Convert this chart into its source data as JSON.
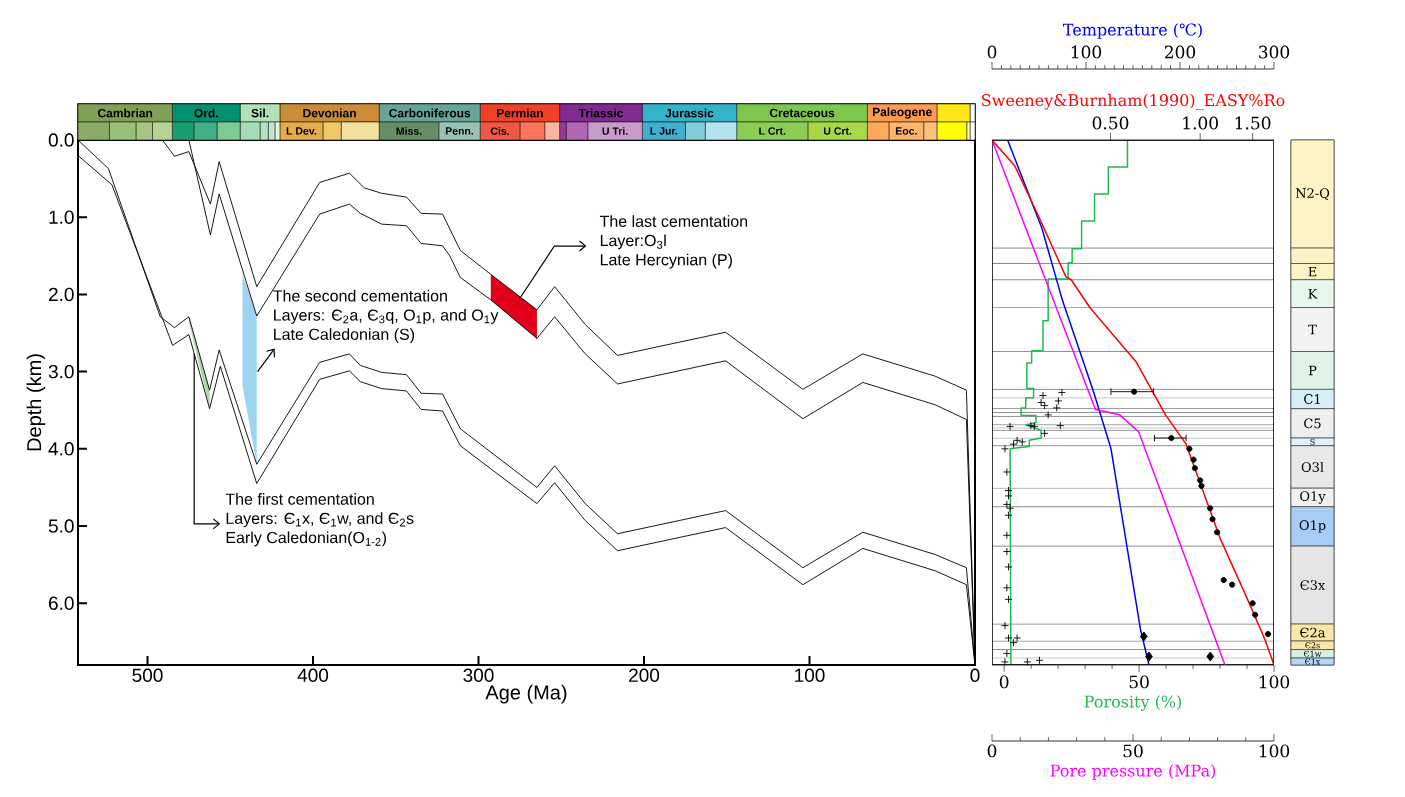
{
  "chart_data": [
    {
      "type": "line",
      "xlabel": "Age (Ma)",
      "ylabel": "Depth (km)",
      "xlim": [
        542,
        0
      ],
      "ylim": [
        6.8,
        0
      ],
      "xticks": [
        500,
        400,
        300,
        200,
        100,
        0
      ],
      "yticks": [
        {
          "value": 0,
          "label": "0.0"
        },
        {
          "value": 1,
          "label": "1.0"
        },
        {
          "value": 2,
          "label": "2.0"
        },
        {
          "value": 3,
          "label": "3.0"
        },
        {
          "value": 4,
          "label": "4.0"
        },
        {
          "value": 5,
          "label": "5.0"
        },
        {
          "value": 6,
          "label": "6.0"
        }
      ],
      "series": [
        {
          "type": "area",
          "color": "#a8d8a8",
          "x": [
            475,
            462.5,
            462.5,
            475
          ],
          "values": [
            2.29,
            3.24,
            3.48,
            2.35
          ]
        },
        {
          "type": "area",
          "color": "#9fd4f0",
          "x": [
            442.6,
            434,
            434,
            442.6
          ],
          "values": [
            1.74,
            2.28,
            4.2,
            3.19
          ]
        },
        {
          "type": "area",
          "color": "#e3001b",
          "x": [
            292.6,
            264.7,
            264.7,
            292.6
          ],
          "values": [
            1.74,
            2.2,
            2.57,
            2.07
          ]
        },
        {
          "color": "#000000",
          "x": [
            491,
            483.7,
            475,
            462,
            456.7,
            434,
            396,
            378,
            369,
            358.5,
            343.5,
            334.7,
            321.7,
            311,
            292.6,
            264.7,
            254,
            235.5,
            216,
            150.7,
            104,
            67.8,
            24,
            5.2,
            0
          ],
          "values": [
            0,
            0.21,
            0.15,
            0.83,
            0.28,
            1.9,
            0.55,
            0.43,
            0.62,
            0.69,
            0.74,
            0.95,
            0.96,
            1.43,
            1.74,
            2.2,
            1.9,
            2.39,
            2.79,
            2.49,
            3.23,
            2.77,
            3.06,
            3.24,
            6.8
          ]
        },
        {
          "color": "#000000",
          "x": [
            475,
            462,
            456.7,
            434,
            396,
            378,
            371.4,
            358.5,
            343.5,
            334.7,
            321.7,
            317.4,
            311,
            292.6,
            264.7,
            254,
            235.5,
            216,
            150.7,
            104,
            67.8,
            24,
            5.2,
            0
          ],
          "values": [
            0,
            1.23,
            0.7,
            2.28,
            0.96,
            0.83,
            0.95,
            1.09,
            1.11,
            1.34,
            1.37,
            1.5,
            1.78,
            2.07,
            2.57,
            2.29,
            2.77,
            3.16,
            2.86,
            3.61,
            3.14,
            3.43,
            3.62,
            6.8
          ]
        },
        {
          "color": "#000000",
          "x": [
            542,
            523.6,
            492.3,
            483.7,
            475,
            462.5,
            456.7,
            434,
            396,
            378,
            371.4,
            358.5,
            343.5,
            334.7,
            321.7,
            311,
            264.7,
            254,
            235.5,
            216,
            150.7,
            104,
            67.8,
            24,
            5.2,
            0
          ],
          "values": [
            0,
            0.37,
            2.29,
            2.43,
            2.29,
            3.24,
            2.72,
            4.2,
            2.88,
            2.77,
            2.92,
            3.01,
            3.04,
            3.28,
            3.29,
            3.74,
            4.5,
            4.22,
            4.71,
            5.1,
            4.8,
            5.54,
            5.08,
            5.37,
            5.54,
            6.8
          ]
        },
        {
          "color": "#000000",
          "x": [
            542,
            521.5,
            484.8,
            475,
            462.5,
            456,
            434,
            396,
            378,
            371.4,
            358.5,
            343.5,
            334.7,
            321.7,
            311,
            264.7,
            254,
            235.5,
            216,
            150.7,
            104,
            67.8,
            24,
            5.2,
            0
          ],
          "values": [
            0.2,
            0.58,
            2.66,
            2.52,
            3.48,
            2.93,
            4.45,
            3.1,
            2.99,
            3.13,
            3.22,
            3.25,
            3.49,
            3.51,
            3.96,
            4.71,
            4.44,
            4.93,
            5.32,
            5.02,
            5.76,
            5.29,
            5.58,
            5.76,
            6.8
          ]
        }
      ],
      "annotations": [
        "The first cementation",
        {
          "text": "Layers:  Є$_{1}$x, Є$_{1}$w, and Є$_{2}$s",
          "x": 471.8,
          "y": 2.77
        },
        "Early Caledonian(O$_{1-2}$)",
        "The second cementation",
        "Layers: Є$_{2}$a, Є$_{3}$q, O$_{1}$p, and O$_{1}$y",
        {
          "text": "Late Caledonian (S)",
          "x": 433.5,
          "y": 3.0
        },
        "The last cementation",
        {
          "text": "Layer:O$_{3}$l",
          "x": 275.3,
          "y": 2.06
        },
        "Late Hercynian (P)"
      ]
    },
    {
      "type": "line",
      "xlabel": "Porosity (%)",
      "x2label": "Temperature (℃)",
      "xlim": [
        -4.5,
        100
      ],
      "xticks": [
        0,
        50,
        100
      ],
      "x2lim": [
        0,
        300
      ],
      "x2ticks": [
        0,
        100,
        200,
        300
      ],
      "ylim": [
        6.8,
        0
      ],
      "tick_labels": "x",
      "series": [
        {
          "color": "#1db954",
          "x": [
            45.7,
            45.7,
            38.6,
            38.6,
            33.5,
            33.5,
            28.7,
            28.7,
            25.2,
            25.2,
            23.7,
            23.7,
            16.3,
            16.3,
            14.4,
            14.4,
            10.2,
            10.2,
            8.4,
            8.4,
            10.9,
            10.9,
            8.0,
            8.0,
            6.3,
            6.3,
            11.8,
            11.8,
            8.0,
            13.7,
            13.7,
            9.3,
            9.3,
            2.2,
            2.5
          ],
          "values": [
            0,
            0.35,
            0.35,
            0.7,
            0.7,
            1.05,
            1.05,
            1.41,
            1.41,
            1.59,
            1.59,
            1.8,
            1.8,
            2.34,
            2.34,
            2.73,
            2.73,
            2.89,
            2.89,
            3.22,
            3.22,
            3.34,
            3.34,
            3.47,
            3.47,
            3.57,
            3.57,
            3.66,
            3.69,
            3.76,
            3.86,
            3.89,
            3.97,
            4.0,
            6.8
          ]
        },
        {
          "type": "scatter",
          "marker": "cross",
          "color": "#000000",
          "x": [
            14.4,
            21.4,
            13.7,
            15.0,
            20.1,
            19.5,
            16.3,
            20.8,
            15.0,
            2.2,
            9.9,
            11.2,
            4.8,
            6.7,
            3.5,
            0.3,
            1.0,
            1.6,
            1.6,
            1.0,
            2.2,
            1.6,
            1.0,
            1.0,
            1.6,
            1.0,
            1.6,
            0.3,
            1.6,
            4.8,
            3.5,
            1.0,
            8.6,
            13.1,
            0.3
          ],
          "values": [
            3.31,
            3.27,
            3.4,
            3.44,
            3.38,
            3.47,
            3.56,
            3.7,
            3.8,
            3.71,
            3.7,
            3.71,
            3.89,
            3.91,
            3.94,
            4.0,
            4.3,
            4.54,
            4.61,
            4.72,
            4.77,
            4.86,
            5.12,
            5.33,
            5.53,
            5.8,
            5.95,
            6.29,
            6.45,
            6.45,
            6.51,
            6.65,
            6.76,
            6.74,
            6.76
          ]
        },
        {
          "axis": "x2",
          "color": "#0000ff",
          "x": [
            16.6,
            53,
            75,
            108,
            126.6,
            157.8,
            167
          ],
          "values": [
            0,
            1.14,
            2.08,
            3.26,
            4.0,
            6.33,
            6.8
          ]
        },
        {
          "type": "scatter",
          "axis": "x2",
          "marker": "diamond",
          "color": "#000000",
          "x": [
            161.5,
            167
          ],
          "values": [
            6.43,
            6.69
          ]
        }
      ],
      "ref_lines": [
        {
          "axis": "y",
          "value": 1.4
        },
        {
          "axis": "y",
          "value": 1.6
        },
        {
          "axis": "y",
          "value": 1.81
        },
        {
          "axis": "y",
          "value": 2.17
        },
        {
          "axis": "y",
          "value": 2.74
        },
        {
          "axis": "y",
          "value": 3.23
        },
        {
          "axis": "y",
          "value": 3.34
        },
        {
          "axis": "y",
          "value": 3.48
        },
        {
          "axis": "y",
          "value": 3.53
        },
        {
          "axis": "y",
          "value": 3.58
        },
        {
          "axis": "y",
          "value": 3.69
        },
        {
          "axis": "y",
          "value": 3.73
        },
        {
          "axis": "y",
          "value": 3.76
        },
        {
          "axis": "y",
          "value": 3.86
        },
        {
          "axis": "y",
          "value": 3.96
        },
        {
          "axis": "y",
          "value": 4.51
        },
        {
          "axis": "y",
          "value": 4.75
        },
        {
          "axis": "y",
          "value": 5.26
        },
        {
          "axis": "y",
          "value": 6.27
        },
        {
          "axis": "y",
          "value": 6.49
        },
        {
          "axis": "y",
          "value": 6.6
        },
        {
          "axis": "y",
          "value": 6.71
        }
      ]
    },
    {
      "type": "line",
      "xlabel": "Sweeney&Burnham(1990)_EASY%Ro",
      "xlim": [
        0.2,
        1.77
      ],
      "xticks": [
        {
          "value": 0.5,
          "label": "0.50"
        },
        {
          "value": 1,
          "label": "1.00"
        },
        {
          "value": 1.5,
          "label": "1.50"
        }
      ],
      "ylim": [
        6.8,
        0
      ],
      "log": "x",
      "tick_labels": "x",
      "series": [
        {
          "color": "#ff0000",
          "x": [
            0.2,
            0.238,
            0.29,
            0.354,
            0.369,
            0.426,
            0.611,
            0.765,
            0.897,
            1.17,
            1.45,
            1.65,
            1.77
          ],
          "values": [
            0,
            0.33,
            1.03,
            1.77,
            1.81,
            2.17,
            2.88,
            3.56,
            3.94,
            5.17,
            5.97,
            6.47,
            6.8
          ]
        },
        {
          "type": "scatter",
          "marker": "circle",
          "color": "#000000",
          "x": [
            0.6,
            0.8,
            0.92,
            0.95,
            0.96,
            1.0,
            1.01,
            1.08,
            1.1,
            1.14,
            1.2,
            1.28,
            1.5,
            1.53,
            1.69
          ],
          "values": [
            3.26,
            3.86,
            4.0,
            4.14,
            4.25,
            4.41,
            4.48,
            4.77,
            4.91,
            5.08,
            5.7,
            5.76,
            6.0,
            6.15,
            6.4
          ],
          "xerrors": [
            [
              0.5,
              0.7
            ],
            [
              0.7,
              0.9
            ],
            null,
            null,
            null,
            null,
            null,
            null,
            null,
            null,
            null,
            null,
            null,
            null,
            null
          ]
        }
      ]
    },
    {
      "type": "line",
      "xlabel": "Pore pressure (MPa)",
      "xlim": [
        0,
        100
      ],
      "xticks": [
        0,
        50,
        100
      ],
      "ylim": [
        6.8,
        0
      ],
      "tick_labels": "x",
      "series": [
        {
          "color": "#ff00ff",
          "x": [
            0,
            19,
            36.7,
            45.3,
            52,
            82.6
          ],
          "values": [
            0,
            1.81,
            3.49,
            3.56,
            3.78,
            6.8
          ]
        },
        {
          "type": "scatter",
          "marker": "diamond",
          "color": "#000000",
          "x": [
            77.4
          ],
          "values": [
            6.69
          ]
        }
      ]
    },
    {
      "type": "bar",
      "orientation": "horizontal",
      "stacked": true,
      "categories": [
        null,
        null
      ],
      "xlim": [
        542,
        0
      ],
      "tick_labels": false,
      "series": [
        {
          "values": [
            3,
            3
          ],
          "colors": [
            "#ffffff",
            "#ffffff"
          ]
        },
        {
          "values": [
            20,
            2
          ],
          "colors": [
            "#ffe619",
            "#ffff99"
          ]
        },
        {
          "values": [
            42,
            18
          ],
          "colors": [
            "#fd9a52",
            "#ffff00"
          ],
          "value_labels": [
            "Paleogene",
            null
          ]
        },
        {
          "values": [
            79,
            8
          ],
          "colors": [
            "#7fc64e",
            "#fdc07a"
          ],
          "value_labels": [
            "Cretaceous",
            null
          ]
        },
        {
          "values": [
            57,
            21
          ],
          "colors": [
            "#34b2c9",
            "#fdb46c"
          ],
          "value_labels": [
            "Jurassic",
            "Eoc."
          ]
        },
        {
          "values": [
            50,
            13
          ],
          "colors": [
            "#812b92",
            "#fda75f"
          ],
          "value_labels": [
            "Triassic",
            null
          ]
        },
        {
          "values": [
            48,
            36
          ],
          "colors": [
            "#f04028",
            "#a6d84a"
          ],
          "value_labels": [
            "Permian",
            "U Crt."
          ]
        },
        {
          "values": [
            61,
            43
          ],
          "colors": [
            "#67a599",
            "#8ccd57"
          ],
          "value_labels": [
            "Carboniferous",
            "L Crt."
          ]
        },
        {
          "values": [
            60,
            19
          ],
          "colors": [
            "#cb8c37",
            "#b3e3ee"
          ],
          "value_labels": [
            "Devonian",
            null
          ]
        },
        {
          "values": [
            24,
            12
          ],
          "colors": [
            "#b3e1b6",
            "#80cfd8"
          ],
          "value_labels": [
            "Sil.",
            null
          ]
        },
        {
          "values": [
            41,
            26
          ],
          "colors": [
            "#009270",
            "#42aed0"
          ],
          "value_labels": [
            "Ord.",
            "L Jur."
          ]
        },
        {
          "values": [
            57,
            33
          ],
          "colors": [
            "#7fa056",
            "#c99bcb"
          ],
          "value_labels": [
            "Cambrian",
            "U Tri."
          ]
        },
        {
          "values": [
            null,
            13
          ],
          "colors": [
            null,
            "#b168b1"
          ]
        },
        {
          "values": [
            null,
            4
          ],
          "colors": [
            null,
            "#983999"
          ]
        },
        {
          "values": [
            null,
            9
          ],
          "colors": [
            null,
            "#fcb4a2"
          ]
        },
        {
          "values": [
            null,
            15
          ],
          "colors": [
            null,
            "#fb745c"
          ]
        },
        {
          "values": [
            null,
            24
          ],
          "colors": [
            null,
            "#ef5845"
          ],
          "value_labels": [
            null,
            "Cis."
          ]
        },
        {
          "values": [
            null,
            25
          ],
          "colors": [
            null,
            "#99c2b5"
          ],
          "value_labels": [
            null,
            "Penn."
          ]
        },
        {
          "values": [
            null,
            36
          ],
          "colors": [
            null,
            "#678f66"
          ],
          "value_labels": [
            null,
            "Miss."
          ]
        },
        {
          "values": [
            null,
            23
          ],
          "colors": [
            null,
            "#f1e19d"
          ]
        },
        {
          "values": [
            null,
            11
          ],
          "colors": [
            null,
            "#f1c868"
          ]
        },
        {
          "values": [
            null,
            26
          ],
          "colors": [
            null,
            "#e5ac4d"
          ],
          "value_labels": [
            null,
            "L Dev."
          ]
        },
        {
          "values": [
            null,
            3
          ],
          "colors": [
            null,
            "#e6f5e1"
          ]
        },
        {
          "values": [
            null,
            4
          ],
          "colors": [
            null,
            "#bfe6cf"
          ]
        },
        {
          "values": [
            null,
            5
          ],
          "colors": [
            null,
            "#b3e1c2"
          ]
        },
        {
          "values": [
            null,
            12
          ],
          "colors": [
            null,
            "#a6dcb5"
          ]
        },
        {
          "values": [
            null,
            14
          ],
          "colors": [
            null,
            "#7fca93"
          ]
        },
        {
          "values": [
            null,
            14
          ],
          "colors": [
            null,
            "#41b087"
          ]
        },
        {
          "values": [
            null,
            13
          ],
          "colors": [
            null,
            "#1a9d6f"
          ]
        },
        {
          "values": [
            null,
            12
          ],
          "colors": [
            null,
            "#b3d492"
          ]
        },
        {
          "values": [
            null,
            10
          ],
          "colors": [
            null,
            "#a6c583"
          ]
        },
        {
          "values": [
            null,
            16
          ],
          "colors": [
            null,
            "#99c078"
          ]
        },
        {
          "values": [
            null,
            19
          ],
          "colors": [
            null,
            "#8caa6a"
          ]
        }
      ]
    },
    {
      "type": "bar",
      "stacked": true,
      "categories": [
        null
      ],
      "ylim": [
        6.8,
        0
      ],
      "tick_labels": false,
      "series": [
        {
          "values": [
            1.4
          ],
          "color": "#fdf3c4",
          "value_labels": [
            "N2-Q"
          ]
        },
        {
          "values": [
            0.2
          ],
          "color": "#fdf3c4"
        },
        {
          "values": [
            0.21
          ],
          "color": "#fdf3c4",
          "value_labels": [
            "E"
          ]
        },
        {
          "values": [
            0.36
          ],
          "color": "#e6f7ec",
          "value_labels": [
            "K"
          ]
        },
        {
          "values": [
            0.57
          ],
          "color": "#f2f2f2",
          "value_labels": [
            "T"
          ]
        },
        {
          "values": [
            0.49
          ],
          "color": "#dff3e8",
          "value_labels": [
            "P"
          ]
        },
        {
          "values": [
            0.25
          ],
          "color": "#d6eefa",
          "value_labels": [
            "C1"
          ]
        },
        {
          "values": [
            0.38
          ],
          "color": "#eeeeee",
          "value_labels": [
            "C5"
          ]
        },
        {
          "values": [
            0.1
          ],
          "color": "#dff0fa",
          "value_labels": [
            "S"
          ]
        },
        {
          "values": [
            0.55
          ],
          "color": "#e8e8e8",
          "value_labels": [
            "O3l"
          ]
        },
        {
          "values": [
            0.24
          ],
          "color": "#f0f0f0",
          "value_labels": [
            "O1y"
          ]
        },
        {
          "values": [
            0.51
          ],
          "color": "#a8cdf5",
          "value_labels": [
            "O1p"
          ]
        },
        {
          "values": [
            1.01
          ],
          "color": "#e4e4e4",
          "value_labels": [
            "Є3x"
          ]
        },
        {
          "values": [
            0.22
          ],
          "color": "#fde7a8",
          "value_labels": [
            "Є2a"
          ]
        },
        {
          "values": [
            0.11
          ],
          "color": "#fde7a8",
          "value_labels": [
            "Є2s"
          ]
        },
        {
          "values": [
            0.11
          ],
          "color": "#d5f0e2",
          "value_labels": [
            "Є1w"
          ]
        },
        {
          "values": [
            0.09
          ],
          "color": "#b5d5f5",
          "value_labels": [
            "Є1x"
          ]
        }
      ]
    }
  ]
}
